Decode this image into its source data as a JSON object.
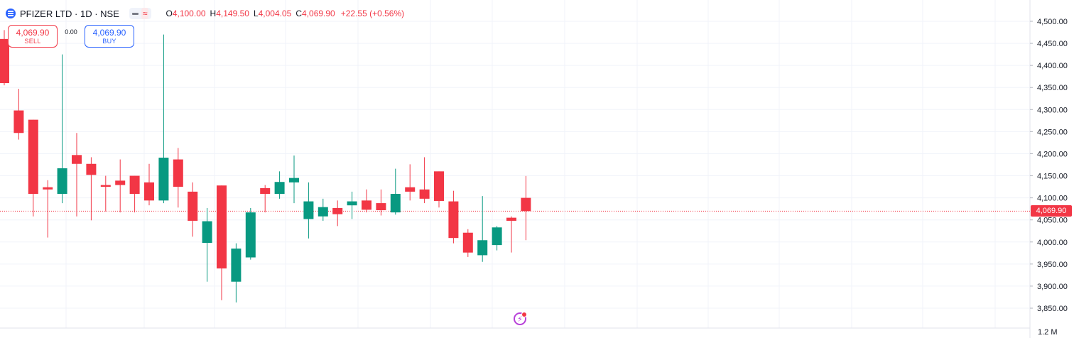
{
  "legend": {
    "symbol": "PFIZER LTD · 1D · NSE",
    "o_key": "O",
    "o_val": "4,100.00",
    "h_key": "H",
    "h_val": "4,149.50",
    "l_key": "L",
    "l_val": "4,004.05",
    "c_key": "C",
    "c_val": "4,069.90",
    "change": "+22.55 (+0.56%)",
    "toggle_icon": "≈"
  },
  "trade": {
    "sell_price": "4,069.90",
    "sell_label": "SELL",
    "spread": "0.00",
    "buy_price": "4,069.90",
    "buy_label": "BUY"
  },
  "axis": {
    "last_price": "4,069.90",
    "volume_label": "1.2 M"
  },
  "colors": {
    "up": "#089981",
    "down": "#f23645",
    "grid": "#f0f3fa",
    "accent": "#2962ff"
  },
  "chart_data": {
    "type": "candlestick",
    "symbol": "PFIZER LTD",
    "interval": "1D",
    "exchange": "NSE",
    "ylim": [
      3830,
      4530
    ],
    "y_ticks": [
      {
        "value": 4500,
        "label": "4,500.00"
      },
      {
        "value": 4450,
        "label": "4,450.00"
      },
      {
        "value": 4400,
        "label": "4,400.00"
      },
      {
        "value": 4350,
        "label": "4,350.00"
      },
      {
        "value": 4300,
        "label": "4,300.00"
      },
      {
        "value": 4250,
        "label": "4,250.00"
      },
      {
        "value": 4200,
        "label": "4,200.00"
      },
      {
        "value": 4150,
        "label": "4,150.00"
      },
      {
        "value": 4100,
        "label": "4,100.00"
      },
      {
        "value": 4050,
        "label": "4,050.00"
      },
      {
        "value": 4000,
        "label": "4,000.00"
      },
      {
        "value": 3950,
        "label": "3,950.00"
      },
      {
        "value": 3900,
        "label": "3,900.00"
      },
      {
        "value": 3850,
        "label": "3,850.00"
      }
    ],
    "last_price": 4069.9,
    "candles": [
      {
        "o": 4460,
        "h": 4480,
        "l": 4355,
        "c": 4360
      },
      {
        "o": 4298,
        "h": 4347,
        "l": 4232,
        "c": 4247
      },
      {
        "o": 4277,
        "h": 4277,
        "l": 4058,
        "c": 4109
      },
      {
        "o": 4124,
        "h": 4140,
        "l": 4010,
        "c": 4119
      },
      {
        "o": 4109,
        "h": 4425,
        "l": 4088,
        "c": 4167
      },
      {
        "o": 4197,
        "h": 4247,
        "l": 4058,
        "c": 4177
      },
      {
        "o": 4177,
        "h": 4192,
        "l": 4049,
        "c": 4152
      },
      {
        "o": 4129,
        "h": 4150,
        "l": 4069,
        "c": 4125
      },
      {
        "o": 4139,
        "h": 4187,
        "l": 4067,
        "c": 4129
      },
      {
        "o": 4150,
        "h": 4150,
        "l": 4067,
        "c": 4109
      },
      {
        "o": 4135,
        "h": 4177,
        "l": 4083,
        "c": 4094
      },
      {
        "o": 4094,
        "h": 4470,
        "l": 4088,
        "c": 4191
      },
      {
        "o": 4187,
        "h": 4213,
        "l": 4078,
        "c": 4125
      },
      {
        "o": 4114,
        "h": 4135,
        "l": 4012,
        "c": 4048
      },
      {
        "o": 3998,
        "h": 4077,
        "l": 3910,
        "c": 4047
      },
      {
        "o": 4128,
        "h": 4128,
        "l": 3868,
        "c": 3940
      },
      {
        "o": 3910,
        "h": 3997,
        "l": 3863,
        "c": 3985
      },
      {
        "o": 3965,
        "h": 4077,
        "l": 3960,
        "c": 4067
      },
      {
        "o": 4122,
        "h": 4129,
        "l": 4067,
        "c": 4109
      },
      {
        "o": 4109,
        "h": 4160,
        "l": 4098,
        "c": 4136
      },
      {
        "o": 4135,
        "h": 4196,
        "l": 4088,
        "c": 4145
      },
      {
        "o": 4052,
        "h": 4135,
        "l": 4008,
        "c": 4092
      },
      {
        "o": 4058,
        "h": 4098,
        "l": 4048,
        "c": 4079
      },
      {
        "o": 4077,
        "h": 4094,
        "l": 4036,
        "c": 4063
      },
      {
        "o": 4083,
        "h": 4114,
        "l": 4052,
        "c": 4092
      },
      {
        "o": 4094,
        "h": 4119,
        "l": 4067,
        "c": 4073
      },
      {
        "o": 4088,
        "h": 4119,
        "l": 4060,
        "c": 4072
      },
      {
        "o": 4067,
        "h": 4166,
        "l": 4062,
        "c": 4109
      },
      {
        "o": 4124,
        "h": 4176,
        "l": 4094,
        "c": 4114
      },
      {
        "o": 4119,
        "h": 4192,
        "l": 4088,
        "c": 4098
      },
      {
        "o": 4160,
        "h": 4160,
        "l": 4078,
        "c": 4093
      },
      {
        "o": 4092,
        "h": 4116,
        "l": 3997,
        "c": 4009
      },
      {
        "o": 4021,
        "h": 4029,
        "l": 3966,
        "c": 3976
      },
      {
        "o": 3970,
        "h": 4104,
        "l": 3955,
        "c": 4004
      },
      {
        "o": 3993,
        "h": 4036,
        "l": 3981,
        "c": 4033
      },
      {
        "o": 4055,
        "h": 4058,
        "l": 3976,
        "c": 4048
      },
      {
        "o": 4100,
        "h": 4149.5,
        "l": 4004.05,
        "c": 4069.9
      }
    ]
  }
}
